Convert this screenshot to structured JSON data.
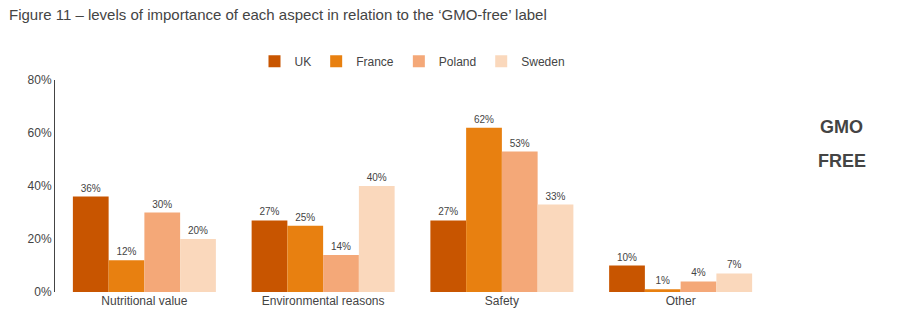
{
  "chart_data": {
    "type": "bar",
    "title": "Figure 11 – levels of importance of each aspect in relation to the ‘GMO-free’ label",
    "categories": [
      "Nutritional value",
      "Environmental reasons",
      "Safety",
      "Other"
    ],
    "series": [
      {
        "name": "UK",
        "color": "#c85500",
        "values": [
          36,
          27,
          27,
          10
        ],
        "value_labels": [
          "36%",
          "27%",
          "27%",
          "10%"
        ]
      },
      {
        "name": "France",
        "color": "#e88010",
        "values": [
          12,
          25,
          62,
          1
        ],
        "value_labels": [
          "12%",
          "25%",
          "62%",
          "1%"
        ]
      },
      {
        "name": "Poland",
        "color": "#f4a878",
        "values": [
          30,
          14,
          53,
          4
        ],
        "value_labels": [
          "30%",
          "14%",
          "53%",
          "4%"
        ]
      },
      {
        "name": "Sweden",
        "color": "#fad8bc",
        "values": [
          20,
          40,
          33,
          7
        ],
        "value_labels": [
          "20%",
          "40%",
          "33%",
          "7%"
        ]
      }
    ],
    "ylim": [
      0,
      80
    ],
    "yticks": [
      {
        "value": 0,
        "label": "0%"
      },
      {
        "value": 20,
        "label": "20%"
      },
      {
        "value": 40,
        "label": "40%"
      },
      {
        "value": 60,
        "label": "60%"
      },
      {
        "value": 80,
        "label": "80%"
      }
    ],
    "grid": false,
    "legend": "top",
    "data_labels": true,
    "annotations": [
      "GMO",
      "FREE"
    ]
  }
}
